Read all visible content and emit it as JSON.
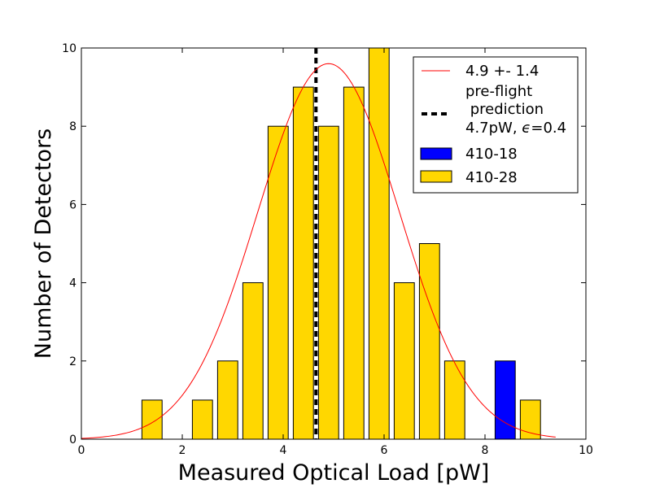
{
  "chart_data": {
    "type": "bar",
    "xlabel": "Measured Optical Load [pW]",
    "ylabel": "Number of Detectors",
    "xlim": [
      0,
      10
    ],
    "ylim": [
      0,
      10
    ],
    "x_ticks": [
      0,
      2,
      4,
      6,
      8,
      10
    ],
    "y_ticks": [
      0,
      2,
      4,
      6,
      8,
      10
    ],
    "bar_width": 0.4,
    "grid": false,
    "legend_position": "top-right",
    "series": [
      {
        "name": "410-18",
        "color": "#0000ff",
        "bars": [
          {
            "x": 8.2,
            "y": 2
          }
        ]
      },
      {
        "name": "410-28",
        "color": "#ffd700",
        "bars": [
          {
            "x": 1.2,
            "y": 1
          },
          {
            "x": 2.2,
            "y": 1
          },
          {
            "x": 2.7,
            "y": 2
          },
          {
            "x": 3.2,
            "y": 4
          },
          {
            "x": 3.7,
            "y": 8
          },
          {
            "x": 4.2,
            "y": 9
          },
          {
            "x": 4.7,
            "y": 8
          },
          {
            "x": 5.2,
            "y": 9
          },
          {
            "x": 5.7,
            "y": 10
          },
          {
            "x": 6.2,
            "y": 4
          },
          {
            "x": 6.7,
            "y": 5
          },
          {
            "x": 7.2,
            "y": 2
          },
          {
            "x": 8.7,
            "y": 1
          }
        ]
      }
    ],
    "fit": {
      "label": "4.9 +- 1.4",
      "color": "#ff0000",
      "mean": 4.9,
      "sigma": 1.4,
      "amplitude": 9.6,
      "x_range": [
        0,
        9.4
      ]
    },
    "reference_line": {
      "label_lines": [
        "pre-flight",
        " prediction",
        "4.7pW, ",
        "=0.4"
      ],
      "epsilon_symbol": "ϵ",
      "x": 4.65,
      "color": "#000000"
    }
  }
}
